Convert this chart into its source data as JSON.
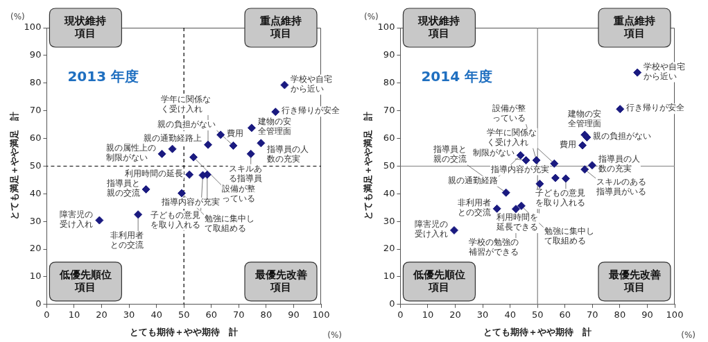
{
  "chart_data": [
    {
      "type": "scatter",
      "title": "2013 年度",
      "xlabel": "とても期待＋やや期待　計",
      "ylabel": "とても満足＋やや満足　計",
      "marker": "diamond",
      "grid": false,
      "legend": false,
      "xlim": [
        0,
        100
      ],
      "xticks": [
        0,
        10,
        20,
        30,
        40,
        50,
        60,
        70,
        80,
        90,
        100
      ],
      "ylim": [
        0,
        100
      ],
      "yticks": [
        0,
        10,
        20,
        30,
        40,
        50,
        60,
        70,
        80,
        90,
        100
      ],
      "series": [
        {
          "color": "#1a1a80",
          "x": [
            86.7,
            83.4,
            74.7,
            78.1,
            74.4,
            68.0,
            63.4,
            58.8,
            45.8,
            53.5,
            42.0,
            52.0,
            58.5,
            56.9,
            49.2,
            36.2,
            33.3,
            19.2
          ],
          "values": [
            79.3,
            69.6,
            63.8,
            58.3,
            54.4,
            57.4,
            61.3,
            57.7,
            56.2,
            53.2,
            54.4,
            46.9,
            46.9,
            46.7,
            40.2,
            41.6,
            32.5,
            30.4
          ]
        }
      ],
      "ref_lines": [
        {
          "axis": "x",
          "value": 50,
          "color": "#000000",
          "line_style": "dashed"
        },
        {
          "axis": "y",
          "value": 50,
          "color": "#000000",
          "line_style": "dashed"
        }
      ],
      "annotations": [
        "現状維持項目",
        "重点維持項目",
        "低優先順位項目",
        "最優先改善項目",
        "(%)",
        "(%)",
        {
          "text": "学校や自宅から近い",
          "x": 86.7,
          "y": 79.3
        },
        {
          "text": "行き帰りが安全",
          "x": 83.4,
          "y": 69.6
        },
        {
          "text": "建物の安全管理面",
          "x": 74.7,
          "y": 63.8
        },
        {
          "text": "指導員の人数の充実",
          "x": 78.1,
          "y": 58.3
        },
        {
          "text": "スキルある指導員",
          "x": 74.4,
          "y": 54.4
        },
        {
          "text": "親の負担がない",
          "x": 68.0,
          "y": 57.4
        },
        {
          "text": "費用",
          "x": 63.4,
          "y": 61.3
        },
        {
          "text": "学年に関係なく受け入れ",
          "x": 58.8,
          "y": 57.7
        },
        {
          "text": "親の通勤経路上",
          "x": 45.8,
          "y": 56.2
        },
        {
          "text": "設備が整っている",
          "x": 53.5,
          "y": 53.2
        },
        {
          "text": "親の属性上の制限がない",
          "x": 42.0,
          "y": 54.4
        },
        {
          "text": "利用時間の延長",
          "x": 52.0,
          "y": 46.9
        },
        {
          "text": "指導内容が充実",
          "x": 58.5,
          "y": 46.9
        },
        {
          "text": "子どもの意見を取り入れる",
          "x": 56.9,
          "y": 46.7
        },
        {
          "text": "勉強に集中して取組める",
          "x": 49.2,
          "y": 40.2
        },
        {
          "text": "指導員と親の交流",
          "x": 36.2,
          "y": 41.6
        },
        {
          "text": "非利用者との交流",
          "x": 33.3,
          "y": 32.5
        },
        {
          "text": "障害児の受け入れ",
          "x": 19.2,
          "y": 30.4
        }
      ]
    },
    {
      "type": "scatter",
      "title": "2014 年度",
      "xlabel": "とても期待＋やや期待　計",
      "ylabel": "とても満足＋やや満足　計",
      "marker": "diamond",
      "grid": false,
      "legend": false,
      "xlim": [
        0,
        100
      ],
      "xticks": [
        0,
        10,
        20,
        30,
        40,
        50,
        60,
        70,
        80,
        90,
        100
      ],
      "ylim": [
        0,
        100
      ],
      "yticks": [
        0,
        10,
        20,
        30,
        40,
        50,
        60,
        70,
        80,
        90,
        100
      ],
      "series": [
        {
          "color": "#1a1a80",
          "x": [
            86.4,
            80.1,
            67.2,
            68.0,
            66.4,
            69.9,
            67.2,
            60.3,
            56.5,
            56.1,
            49.6,
            45.8,
            43.8,
            50.8,
            44.1,
            42.1,
            38.5,
            35.2,
            19.6
          ],
          "values": [
            83.8,
            70.6,
            61.3,
            60.4,
            57.5,
            50.3,
            48.8,
            45.5,
            45.7,
            50.9,
            52.1,
            52.1,
            53.9,
            43.6,
            35.6,
            34.5,
            40.4,
            34.6,
            26.8
          ]
        }
      ],
      "ref_lines": [
        {
          "axis": "x",
          "value": 50,
          "color": "#808080",
          "line_style": "solid"
        },
        {
          "axis": "y",
          "value": 50,
          "color": "#808080",
          "line_style": "solid"
        }
      ],
      "annotations": [
        "現状維持項目",
        "重点維持項目",
        "低優先順位項目",
        "最優先改善項目",
        "(%)",
        "(%)",
        {
          "text": "学校や自宅から近い",
          "x": 86.4,
          "y": 83.8
        },
        {
          "text": "行き帰りが安全",
          "x": 80.1,
          "y": 70.6
        },
        {
          "text": "建物の安全管理面",
          "x": 67.2,
          "y": 61.3
        },
        {
          "text": "親の負担がない",
          "x": 68.0,
          "y": 60.4
        },
        {
          "text": "費用",
          "x": 66.4,
          "y": 57.5
        },
        {
          "text": "指導員の人数の充実",
          "x": 69.9,
          "y": 50.3
        },
        {
          "text": "スキルのある指導員がいる",
          "x": 67.2,
          "y": 48.8
        },
        {
          "text": "子どもの意見を取り入れる",
          "x": 60.3,
          "y": 45.5
        },
        {
          "text": "指導内容が充実",
          "x": 56.5,
          "y": 45.7
        },
        {
          "text": "学年に関係なく受け入れ",
          "x": 56.1,
          "y": 50.9
        },
        {
          "text": "設備が整っている",
          "x": 49.6,
          "y": 52.1
        },
        {
          "text": "制限がない",
          "x": 45.8,
          "y": 52.1
        },
        {
          "text": "親の通勤経路",
          "x": 43.8,
          "y": 53.9
        },
        {
          "text": "利用時間を延長できる",
          "x": 50.8,
          "y": 43.6
        },
        {
          "text": "勉強に集中して取組める",
          "x": 44.1,
          "y": 35.6
        },
        {
          "text": "学校の勉強の補習ができる",
          "x": 42.1,
          "y": 34.5
        },
        {
          "text": "指導員と親の交流",
          "x": 38.5,
          "y": 40.4
        },
        {
          "text": "非利用者との交流",
          "x": 35.2,
          "y": 34.6
        },
        {
          "text": "障害児の受け入れ",
          "x": 19.6,
          "y": 26.8
        }
      ]
    }
  ]
}
